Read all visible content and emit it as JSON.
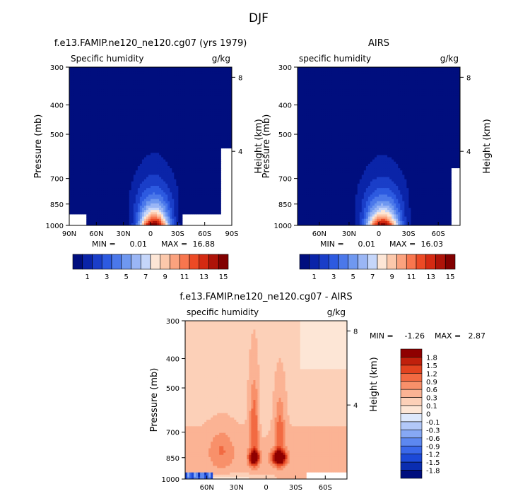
{
  "figure_title": "DJF",
  "colors": {
    "absolute_scale": [
      "#000e7e",
      "#0a24a8",
      "#1a3ec8",
      "#2d5ae0",
      "#4b78ea",
      "#6f98f0",
      "#9ab6f5",
      "#c5d6fa",
      "#fde6d6",
      "#fcc8ab",
      "#fba27e",
      "#f8764e",
      "#ec4a25",
      "#d42a12",
      "#ae1308",
      "#820000"
    ],
    "diff_scale": [
      "#000e7e",
      "#0a2db0",
      "#1c49d8",
      "#3a68ea",
      "#5d88f0",
      "#86a8f4",
      "#b2c8f8",
      "#dde8fc",
      "#fde6d6",
      "#fcd0b8",
      "#fbb394",
      "#f8906a",
      "#f26a42",
      "#e2431f",
      "#c0200c",
      "#8f0000"
    ]
  },
  "chart_data": [
    {
      "type": "heatmap",
      "id": "model",
      "title": "f.e13.FAMIP.ne120_ne120.cg07 (yrs 1979)",
      "left_label": "Specific humidity",
      "units": "g/kg",
      "ylabel": "Pressure (mb)",
      "y2label": "Height (km)",
      "x_range": [
        90,
        -90
      ],
      "x_ticks": [
        90,
        60,
        30,
        0,
        -30,
        -60,
        -90
      ],
      "x_tick_labels": [
        "90N",
        "60N",
        "30N",
        "0",
        "30S",
        "60S",
        "90S"
      ],
      "y_ticks": [
        300,
        400,
        500,
        700,
        850,
        1000
      ],
      "y_tick_labels": [
        "300",
        "400",
        "500",
        "700",
        "850",
        "1000"
      ],
      "y2_ticks": [
        8,
        4
      ],
      "y2_tick_labels": [
        "8",
        "4"
      ],
      "stats": {
        "min_label": "MIN =",
        "min": "0.01",
        "max_label": "MAX =",
        "max": "16.88"
      },
      "peak": 16.88,
      "colorbar_ticks": [
        "1",
        "3",
        "5",
        "7",
        "9",
        "11",
        "13",
        "15"
      ]
    },
    {
      "type": "heatmap",
      "id": "obs",
      "title": "AIRS",
      "left_label": "specific humidity",
      "units": "g/kg",
      "ylabel": "Pressure (mb)",
      "y2label": "Height (km)",
      "x_range": [
        82,
        -82
      ],
      "x_ticks": [
        60,
        30,
        0,
        -30,
        -60
      ],
      "x_tick_labels": [
        "60N",
        "30N",
        "0",
        "30S",
        "60S"
      ],
      "y_ticks": [
        300,
        400,
        500,
        700,
        850,
        1000
      ],
      "y_tick_labels": [
        "300",
        "400",
        "500",
        "700",
        "850",
        "1000"
      ],
      "y2_ticks": [
        8,
        4
      ],
      "y2_tick_labels": [
        "8",
        "4"
      ],
      "stats": {
        "min_label": "MIN =",
        "min": "0.01",
        "max_label": "MAX =",
        "max": "16.03"
      },
      "peak": 16.03,
      "colorbar_ticks": [
        "1",
        "3",
        "5",
        "7",
        "9",
        "11",
        "13",
        "15"
      ]
    },
    {
      "type": "heatmap",
      "id": "diff",
      "title": "f.e13.FAMIP.ne120_ne120.cg07 - AIRS",
      "left_label": "specific humidity",
      "units": "g/kg",
      "ylabel": "Pressure (mb)",
      "y2label": "Height (km)",
      "x_range": [
        82,
        -82
      ],
      "x_ticks": [
        60,
        30,
        0,
        -30,
        -60
      ],
      "x_tick_labels": [
        "60N",
        "30N",
        "0",
        "30S",
        "60S"
      ],
      "y_ticks": [
        300,
        400,
        500,
        700,
        850,
        1000
      ],
      "y_tick_labels": [
        "300",
        "400",
        "500",
        "700",
        "850",
        "1000"
      ],
      "y2_ticks": [
        8,
        4
      ],
      "y2_tick_labels": [
        "8",
        "4"
      ],
      "stats": {
        "min_label": "MIN =",
        "min": "-1.26",
        "max_label": "MAX =",
        "max": "2.87"
      },
      "colorbar_levels": [
        "1.8",
        "1.5",
        "1.2",
        "0.9",
        "0.6",
        "0.3",
        "0.1",
        "0",
        "-0.1",
        "-0.3",
        "-0.6",
        "-0.9",
        "-1.2",
        "-1.5",
        "-1.8"
      ]
    }
  ]
}
